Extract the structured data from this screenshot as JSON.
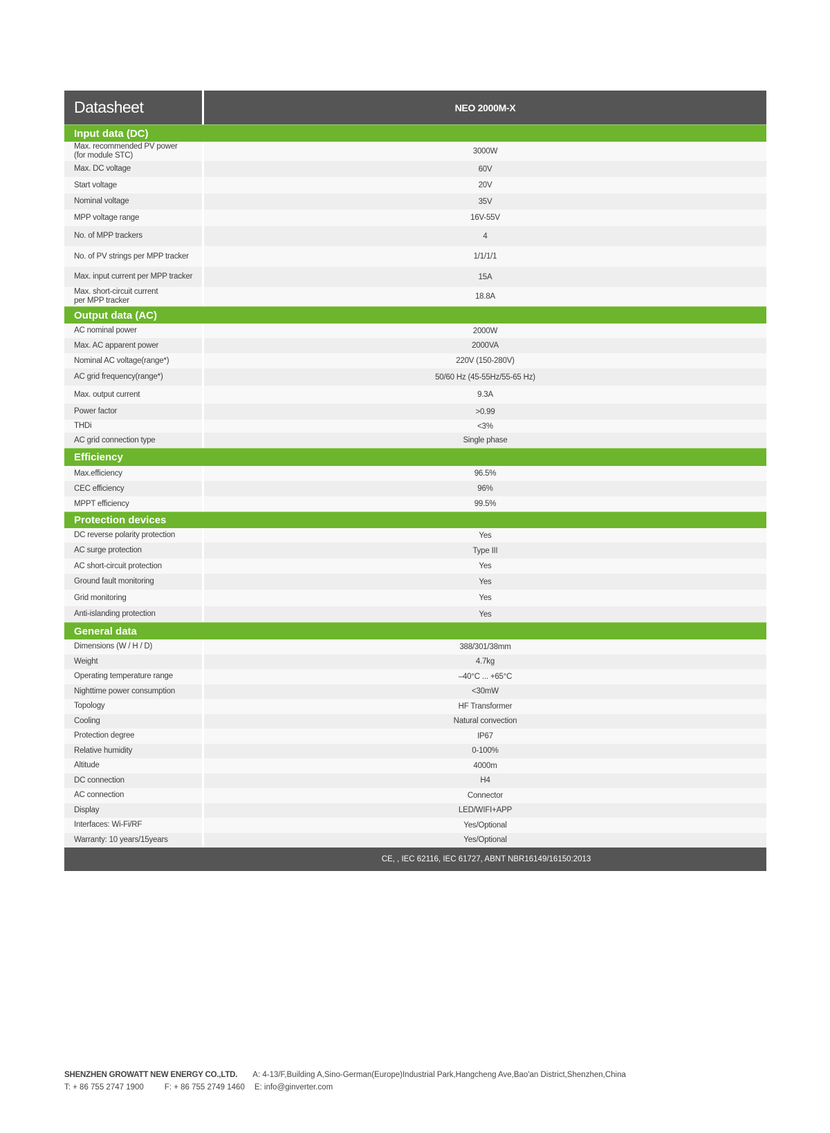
{
  "header": {
    "title": "Datasheet",
    "model": "NEO 2000M-X"
  },
  "sections": [
    {
      "title": "Input data (DC)",
      "rows": [
        {
          "label": "Max. recommended PV power\n(for module STC)",
          "value": "3000W"
        },
        {
          "label": "Max. DC voltage",
          "value": "60V"
        },
        {
          "label": "Start voltage",
          "value": "20V"
        },
        {
          "label": "Nominal voltage",
          "value": "35V"
        },
        {
          "label": "MPP voltage range",
          "value": "16V-55V"
        },
        {
          "label": "No. of MPP trackers",
          "value": "4"
        },
        {
          "label": "No. of PV strings per MPP tracker",
          "value": "1/1/1/1"
        },
        {
          "label": "Max. input current per MPP tracker",
          "value": "15A"
        },
        {
          "label": "Max. short-circuit current\nper MPP tracker",
          "value": "18.8A"
        }
      ]
    },
    {
      "title": "Output data (AC)",
      "rows": [
        {
          "label": "AC nominal power",
          "value": "2000W"
        },
        {
          "label": "Max. AC apparent power",
          "value": "2000VA"
        },
        {
          "label": "Nominal AC voltage(range*)",
          "value": "220V (150-280V)"
        },
        {
          "label": "AC grid frequency(range*)",
          "value": "50/60 Hz (45-55Hz/55-65 Hz)"
        },
        {
          "label": "Max. output current",
          "value": "9.3A"
        },
        {
          "label": "Power factor",
          "value": ">0.99"
        },
        {
          "label": "THDi",
          "value": "<3%"
        },
        {
          "label": "AC grid connection type",
          "value": "Single phase"
        }
      ]
    },
    {
      "title": "Efficiency",
      "rows": [
        {
          "label": "Max.efficiency",
          "value": "96.5%"
        },
        {
          "label": "CEC efficiency",
          "value": "96%"
        },
        {
          "label": "MPPT efficiency",
          "value": "99.5%"
        }
      ]
    },
    {
      "title": "Protection devices",
      "rows": [
        {
          "label": "DC reverse polarity protection",
          "value": "Yes"
        },
        {
          "label": "AC surge protection",
          "value": "Type III"
        },
        {
          "label": "AC short-circuit protection",
          "value": "Yes"
        },
        {
          "label": "Ground fault monitoring",
          "value": "Yes"
        },
        {
          "label": "Grid monitoring",
          "value": "Yes"
        },
        {
          "label": "Anti-islanding protection",
          "value": "Yes"
        }
      ]
    },
    {
      "title": "General data",
      "rows": [
        {
          "label": "Dimensions (W / H / D)",
          "value": "388/301/38mm"
        },
        {
          "label": "Weight",
          "value": "4.7kg"
        },
        {
          "label": "Operating temperature range",
          "value": "–40°C ... +65°C"
        },
        {
          "label": "Nighttime power consumption",
          "value": "<30mW"
        },
        {
          "label": "Topology",
          "value": "HF Transformer"
        },
        {
          "label": "Cooling",
          "value": "Natural convection"
        },
        {
          "label": "Protection degree",
          "value": "IP67"
        },
        {
          "label": "Relative humidity",
          "value": "0-100%"
        },
        {
          "label": "Altitude",
          "value": "4000m"
        },
        {
          "label": "DC connection",
          "value": "H4"
        },
        {
          "label": "AC connection",
          "value": "Connector"
        },
        {
          "label": "Display",
          "value": "LED/WIFI+APP"
        },
        {
          "label": "Interfaces: Wi-Fi/RF",
          "value": "Yes/Optional"
        },
        {
          "label": "Warranty: 10 years/15years",
          "value": "Yes/Optional"
        }
      ]
    }
  ],
  "certifications": "CE, , IEC 62116, IEC 61727, ABNT NBR16149/16150:2013",
  "company": {
    "name": "SHENZHEN GROWATT NEW ENERGY CO.,LTD.",
    "address": "A: 4-13/F,Building A,Sino-German(Europe)Industrial Park,Hangcheng Ave,Bao'an District,Shenzhen,China",
    "phone": "T:  + 86 755 2747 1900",
    "fax": "F:  + 86 755 2749 1460",
    "email": "E:  info@ginverter.com"
  },
  "colors": {
    "header_bg": "#555555",
    "section_green": "#6cb52d",
    "row_light": "#f8f8f8",
    "row_dark": "#eeeeee"
  }
}
